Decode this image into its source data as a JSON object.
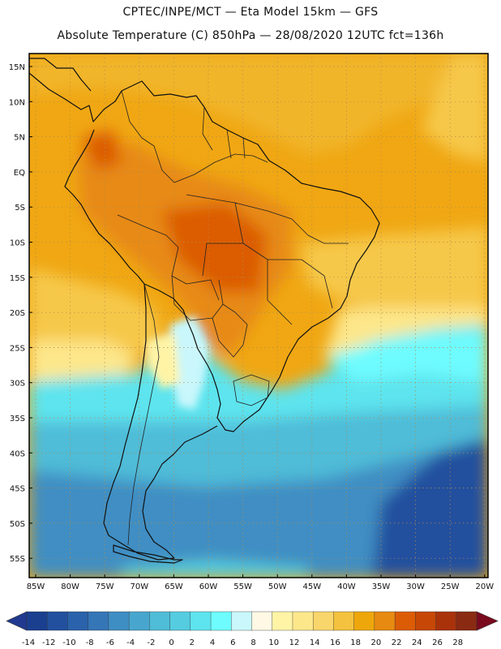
{
  "header": {
    "title_line1": "CPTEC/INPE/MCT —  Eta Model 15km — GFS",
    "title_line2": "Absolute Temperature (C) 850hPa — 28/08/2020 12UTC fct=136h"
  },
  "map": {
    "lat_labels": [
      "15N",
      "10N",
      "5N",
      "EQ",
      "5S",
      "10S",
      "15S",
      "20S",
      "25S",
      "30S",
      "35S",
      "40S",
      "45S",
      "50S",
      "55S"
    ],
    "lon_labels": [
      "85W",
      "80W",
      "75W",
      "70W",
      "65W",
      "60W",
      "55W",
      "50W",
      "45W",
      "40W",
      "35W",
      "30W",
      "25W",
      "20W"
    ]
  },
  "colorbar": {
    "labels": [
      "-14",
      "-12",
      "-10",
      "-8",
      "-6",
      "-4",
      "-2",
      "0",
      "2",
      "4",
      "6",
      "8",
      "10",
      "12",
      "14",
      "16",
      "18",
      "20",
      "22",
      "24",
      "26",
      "28"
    ],
    "colors": [
      "#1a3f8f",
      "#22509e",
      "#2a62ab",
      "#3576b7",
      "#3f8ec3",
      "#48a6ce",
      "#4fbcd8",
      "#55cce0",
      "#5de4ee",
      "#6efcff",
      "#c9f7fb",
      "#fff8e4",
      "#fff4a6",
      "#fde78b",
      "#f9d66b",
      "#f4c23e",
      "#eea70b",
      "#e78a12",
      "#dc5c06",
      "#c74706",
      "#a9320b",
      "#8a2a13"
    ],
    "low_end_color": "#1f3a8f",
    "high_end_color": "#7a0a1e"
  }
}
